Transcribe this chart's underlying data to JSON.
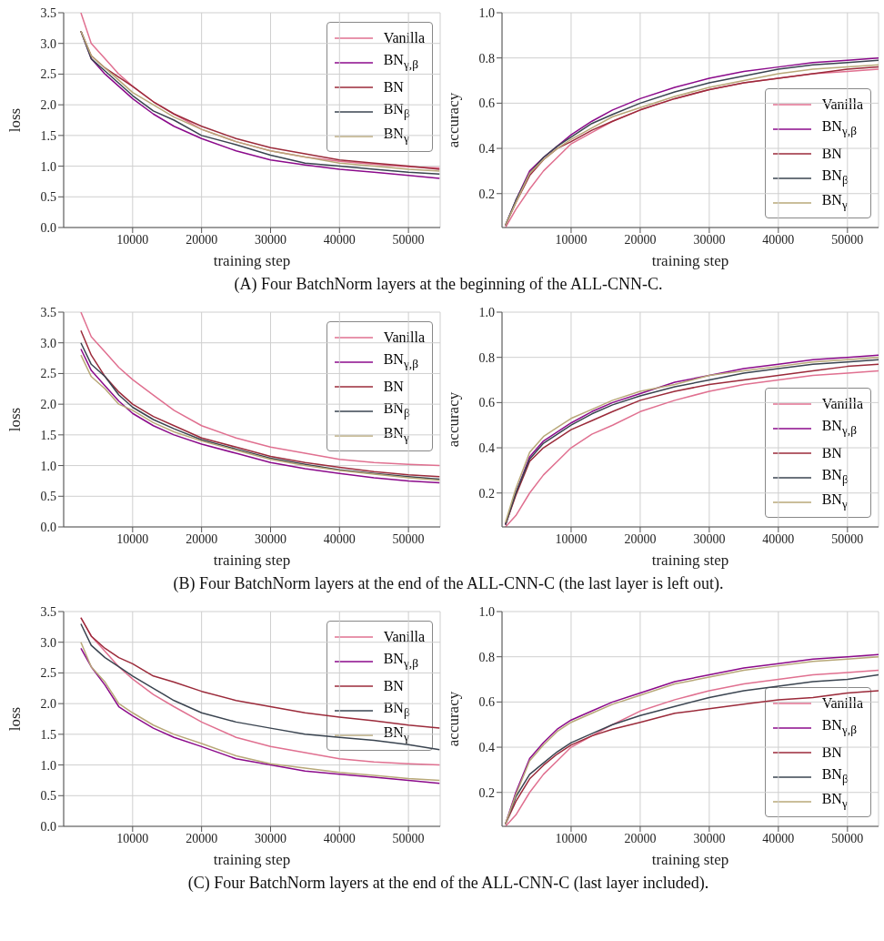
{
  "chart_data": [
    {
      "type": "line",
      "ylabel": "loss",
      "xlabel": "training step",
      "xlim": [
        0,
        54600
      ],
      "xticks": [
        10000,
        20000,
        30000,
        40000,
        50000
      ],
      "ylim": [
        0,
        3.5
      ],
      "yticks": [
        {
          "value": 0,
          "label": "0.0"
        },
        {
          "value": 0.5,
          "label": "0.5"
        },
        {
          "value": 1,
          "label": "1.0"
        },
        {
          "value": 1.5,
          "label": "1.5"
        },
        {
          "value": 2,
          "label": "2.0"
        },
        {
          "value": 2.5,
          "label": "2.5"
        },
        {
          "value": 3,
          "label": "3.0"
        },
        {
          "value": 3.5,
          "label": "3.5"
        }
      ],
      "grid": true,
      "legend": "top right",
      "line_style": "solid",
      "marker": "none",
      "annotations": [
        "(A) Four BatchNorm layers at the beginning of the ALL-CNN-C."
      ],
      "x": [
        2500,
        4000,
        6000,
        8000,
        10000,
        13000,
        16000,
        20000,
        25000,
        30000,
        35000,
        40000,
        45000,
        50000,
        54500
      ],
      "series": [
        {
          "name": "Vanilla",
          "color": "#e07090",
          "values": [
            3.5,
            3.0,
            2.75,
            2.5,
            2.3,
            2.05,
            1.85,
            1.6,
            1.4,
            1.25,
            1.15,
            1.08,
            1.03,
            0.99,
            0.97
          ]
        },
        {
          "name": "BN$_{γ,β}$",
          "color": "#8b0a8b",
          "values": [
            3.2,
            2.75,
            2.5,
            2.3,
            2.1,
            1.85,
            1.65,
            1.45,
            1.25,
            1.1,
            1.02,
            0.95,
            0.9,
            0.85,
            0.8
          ]
        },
        {
          "name": "BN",
          "color": "#9b2a3a",
          "values": [
            3.2,
            2.8,
            2.6,
            2.45,
            2.3,
            2.05,
            1.85,
            1.65,
            1.45,
            1.3,
            1.2,
            1.1,
            1.05,
            1.0,
            0.95
          ]
        },
        {
          "name": "BN$_{β}$",
          "color": "#3a4450",
          "values": [
            3.2,
            2.75,
            2.55,
            2.35,
            2.15,
            1.9,
            1.75,
            1.5,
            1.35,
            1.18,
            1.05,
            1.0,
            0.95,
            0.9,
            0.87
          ]
        },
        {
          "name": "BN$_{γ}$",
          "color": "#b8a878",
          "values": [
            3.2,
            2.8,
            2.6,
            2.4,
            2.2,
            2.0,
            1.8,
            1.6,
            1.4,
            1.25,
            1.15,
            1.05,
            1.0,
            0.95,
            0.92
          ]
        }
      ]
    },
    {
      "type": "line",
      "ylabel": "accuracy",
      "xlabel": "training step",
      "xlim": [
        0,
        54500
      ],
      "xticks": [
        10000,
        20000,
        30000,
        40000,
        50000
      ],
      "ylim": [
        0.05,
        1.0
      ],
      "yticks": [
        0.2,
        0.4,
        0.6,
        0.8,
        {
          "value": 1,
          "label": "1.0"
        }
      ],
      "grid": true,
      "legend": "bottom right",
      "line_style": "solid",
      "marker": "none",
      "x": [
        500,
        2000,
        4000,
        6000,
        8000,
        10000,
        13000,
        16000,
        20000,
        25000,
        30000,
        35000,
        40000,
        45000,
        50000,
        54500
      ],
      "series": [
        {
          "name": "Vanilla",
          "color": "#e07090",
          "values": [
            0.05,
            0.13,
            0.22,
            0.3,
            0.36,
            0.42,
            0.47,
            0.52,
            0.57,
            0.62,
            0.66,
            0.69,
            0.71,
            0.73,
            0.74,
            0.75
          ]
        },
        {
          "name": "BN$_{γ,β}$",
          "color": "#8b0a8b",
          "values": [
            0.06,
            0.17,
            0.3,
            0.36,
            0.41,
            0.46,
            0.52,
            0.57,
            0.62,
            0.67,
            0.71,
            0.74,
            0.76,
            0.78,
            0.79,
            0.8
          ]
        },
        {
          "name": "BN",
          "color": "#9b2a3a",
          "values": [
            0.06,
            0.16,
            0.28,
            0.35,
            0.4,
            0.43,
            0.48,
            0.52,
            0.57,
            0.62,
            0.66,
            0.69,
            0.71,
            0.73,
            0.75,
            0.76
          ]
        },
        {
          "name": "BN$_{β}$",
          "color": "#3a4450",
          "values": [
            0.06,
            0.17,
            0.29,
            0.36,
            0.41,
            0.45,
            0.51,
            0.55,
            0.6,
            0.65,
            0.69,
            0.72,
            0.75,
            0.77,
            0.78,
            0.79
          ]
        },
        {
          "name": "BN$_{γ}$",
          "color": "#b8a878",
          "values": [
            0.06,
            0.16,
            0.29,
            0.35,
            0.4,
            0.44,
            0.49,
            0.54,
            0.58,
            0.63,
            0.67,
            0.7,
            0.73,
            0.75,
            0.76,
            0.77
          ]
        }
      ]
    },
    {
      "type": "line",
      "ylabel": "loss",
      "xlabel": "training step",
      "xlim": [
        0,
        54600
      ],
      "xticks": [
        10000,
        20000,
        30000,
        40000,
        50000
      ],
      "ylim": [
        0,
        3.5
      ],
      "yticks": [
        {
          "value": 0,
          "label": "0.0"
        },
        {
          "value": 0.5,
          "label": "0.5"
        },
        {
          "value": 1,
          "label": "1.0"
        },
        {
          "value": 1.5,
          "label": "1.5"
        },
        {
          "value": 2,
          "label": "2.0"
        },
        {
          "value": 2.5,
          "label": "2.5"
        },
        {
          "value": 3,
          "label": "3.0"
        },
        {
          "value": 3.5,
          "label": "3.5"
        }
      ],
      "grid": true,
      "legend": "top right",
      "line_style": "solid",
      "marker": "none",
      "annotations": [
        "(B) Four BatchNorm layers at the end of the ALL-CNN-C (the last layer is left out)."
      ],
      "x": [
        2500,
        4000,
        6000,
        8000,
        10000,
        13000,
        16000,
        20000,
        25000,
        30000,
        35000,
        40000,
        45000,
        50000,
        54500
      ],
      "series": [
        {
          "name": "Vanilla",
          "color": "#e07090",
          "values": [
            3.5,
            3.1,
            2.85,
            2.6,
            2.4,
            2.15,
            1.9,
            1.65,
            1.45,
            1.3,
            1.2,
            1.1,
            1.05,
            1.02,
            1.0
          ]
        },
        {
          "name": "BN$_{γ,β}$",
          "color": "#8b0a8b",
          "values": [
            2.9,
            2.55,
            2.3,
            2.05,
            1.85,
            1.65,
            1.5,
            1.35,
            1.2,
            1.05,
            0.95,
            0.87,
            0.8,
            0.75,
            0.72
          ]
        },
        {
          "name": "BN",
          "color": "#9b2a3a",
          "values": [
            3.2,
            2.8,
            2.45,
            2.2,
            2.0,
            1.8,
            1.65,
            1.45,
            1.3,
            1.15,
            1.05,
            0.97,
            0.9,
            0.85,
            0.82
          ]
        },
        {
          "name": "BN$_{β}$",
          "color": "#3a4450",
          "values": [
            3.0,
            2.65,
            2.45,
            2.15,
            1.95,
            1.75,
            1.6,
            1.42,
            1.27,
            1.12,
            1.02,
            0.93,
            0.87,
            0.82,
            0.78
          ]
        },
        {
          "name": "BN$_{γ}$",
          "color": "#b8a878",
          "values": [
            2.8,
            2.45,
            2.25,
            2.0,
            1.9,
            1.7,
            1.55,
            1.4,
            1.25,
            1.1,
            1.0,
            0.92,
            0.86,
            0.8,
            0.76
          ]
        }
      ]
    },
    {
      "type": "line",
      "ylabel": "accuracy",
      "xlabel": "training step",
      "xlim": [
        0,
        54500
      ],
      "xticks": [
        10000,
        20000,
        30000,
        40000,
        50000
      ],
      "ylim": [
        0.05,
        1.0
      ],
      "yticks": [
        0.2,
        0.4,
        0.6,
        0.8,
        {
          "value": 1,
          "label": "1.0"
        }
      ],
      "grid": true,
      "legend": "bottom right",
      "line_style": "solid",
      "marker": "none",
      "x": [
        500,
        2000,
        4000,
        6000,
        8000,
        10000,
        13000,
        16000,
        20000,
        25000,
        30000,
        35000,
        40000,
        45000,
        50000,
        54500
      ],
      "series": [
        {
          "name": "Vanilla",
          "color": "#e07090",
          "values": [
            0.05,
            0.1,
            0.2,
            0.28,
            0.34,
            0.4,
            0.46,
            0.5,
            0.56,
            0.61,
            0.65,
            0.68,
            0.7,
            0.72,
            0.73,
            0.74
          ]
        },
        {
          "name": "BN$_{γ,β}$",
          "color": "#8b0a8b",
          "values": [
            0.06,
            0.2,
            0.36,
            0.43,
            0.47,
            0.51,
            0.56,
            0.6,
            0.64,
            0.69,
            0.72,
            0.75,
            0.77,
            0.79,
            0.8,
            0.81
          ]
        },
        {
          "name": "BN",
          "color": "#9b2a3a",
          "values": [
            0.06,
            0.19,
            0.34,
            0.4,
            0.44,
            0.48,
            0.52,
            0.56,
            0.61,
            0.65,
            0.68,
            0.7,
            0.72,
            0.74,
            0.76,
            0.77
          ]
        },
        {
          "name": "BN$_{β}$",
          "color": "#3a4450",
          "values": [
            0.06,
            0.2,
            0.35,
            0.42,
            0.46,
            0.5,
            0.55,
            0.59,
            0.63,
            0.67,
            0.7,
            0.73,
            0.75,
            0.77,
            0.78,
            0.79
          ]
        },
        {
          "name": "BN$_{γ}$",
          "color": "#b8a878",
          "values": [
            0.07,
            0.22,
            0.38,
            0.45,
            0.49,
            0.53,
            0.57,
            0.61,
            0.65,
            0.68,
            0.72,
            0.74,
            0.76,
            0.78,
            0.79,
            0.8
          ]
        }
      ]
    },
    {
      "type": "line",
      "ylabel": "loss",
      "xlabel": "training step",
      "xlim": [
        0,
        54600
      ],
      "xticks": [
        10000,
        20000,
        30000,
        40000,
        50000
      ],
      "ylim": [
        0,
        3.5
      ],
      "yticks": [
        {
          "value": 0,
          "label": "0.0"
        },
        {
          "value": 0.5,
          "label": "0.5"
        },
        {
          "value": 1,
          "label": "1.0"
        },
        {
          "value": 1.5,
          "label": "1.5"
        },
        {
          "value": 2,
          "label": "2.0"
        },
        {
          "value": 2.5,
          "label": "2.5"
        },
        {
          "value": 3,
          "label": "3.0"
        },
        {
          "value": 3.5,
          "label": "3.5"
        }
      ],
      "grid": true,
      "legend": "top right",
      "line_style": "solid",
      "marker": "none",
      "annotations": [
        "(C) Four BatchNorm layers at the end of the ALL-CNN-C (last layer included)."
      ],
      "x": [
        2500,
        4000,
        6000,
        8000,
        10000,
        13000,
        16000,
        20000,
        25000,
        30000,
        35000,
        40000,
        45000,
        50000,
        54500
      ],
      "series": [
        {
          "name": "Vanilla",
          "color": "#e07090",
          "values": [
            3.4,
            3.1,
            2.85,
            2.6,
            2.4,
            2.15,
            1.95,
            1.7,
            1.45,
            1.3,
            1.2,
            1.1,
            1.05,
            1.02,
            1.0
          ]
        },
        {
          "name": "BN$_{γ,β}$",
          "color": "#8b0a8b",
          "values": [
            2.9,
            2.6,
            2.3,
            1.95,
            1.8,
            1.6,
            1.45,
            1.3,
            1.1,
            1.0,
            0.9,
            0.85,
            0.8,
            0.75,
            0.7
          ]
        },
        {
          "name": "BN",
          "color": "#9b2a3a",
          "values": [
            3.4,
            3.1,
            2.9,
            2.75,
            2.65,
            2.45,
            2.35,
            2.2,
            2.05,
            1.95,
            1.85,
            1.78,
            1.72,
            1.65,
            1.6
          ]
        },
        {
          "name": "BN$_{β}$",
          "color": "#3a4450",
          "values": [
            3.3,
            2.95,
            2.75,
            2.6,
            2.45,
            2.25,
            2.05,
            1.85,
            1.7,
            1.6,
            1.5,
            1.45,
            1.4,
            1.33,
            1.25
          ]
        },
        {
          "name": "BN$_{γ}$",
          "color": "#b8a878",
          "values": [
            3.0,
            2.6,
            2.35,
            2.0,
            1.85,
            1.65,
            1.5,
            1.35,
            1.15,
            1.02,
            0.95,
            0.88,
            0.83,
            0.78,
            0.75
          ]
        }
      ]
    },
    {
      "type": "line",
      "ylabel": "accuracy",
      "xlabel": "training step",
      "xlim": [
        0,
        54500
      ],
      "xticks": [
        10000,
        20000,
        30000,
        40000,
        50000
      ],
      "ylim": [
        0.05,
        1.0
      ],
      "yticks": [
        0.2,
        0.4,
        0.6,
        0.8,
        {
          "value": 1,
          "label": "1.0"
        }
      ],
      "grid": true,
      "legend": "bottom right",
      "line_style": "solid",
      "marker": "none",
      "x": [
        500,
        2000,
        4000,
        6000,
        8000,
        10000,
        13000,
        16000,
        20000,
        25000,
        30000,
        35000,
        40000,
        45000,
        50000,
        54500
      ],
      "series": [
        {
          "name": "Vanilla",
          "color": "#e07090",
          "values": [
            0.05,
            0.1,
            0.2,
            0.28,
            0.34,
            0.4,
            0.45,
            0.5,
            0.56,
            0.61,
            0.65,
            0.68,
            0.7,
            0.72,
            0.73,
            0.74
          ]
        },
        {
          "name": "BN$_{γ,β}$",
          "color": "#8b0a8b",
          "values": [
            0.06,
            0.2,
            0.35,
            0.42,
            0.48,
            0.52,
            0.56,
            0.6,
            0.64,
            0.69,
            0.72,
            0.75,
            0.77,
            0.79,
            0.8,
            0.81
          ]
        },
        {
          "name": "BN",
          "color": "#9b2a3a",
          "values": [
            0.06,
            0.16,
            0.26,
            0.32,
            0.37,
            0.41,
            0.45,
            0.48,
            0.51,
            0.55,
            0.57,
            0.59,
            0.61,
            0.62,
            0.64,
            0.65
          ]
        },
        {
          "name": "BN$_{β}$",
          "color": "#3a4450",
          "values": [
            0.06,
            0.18,
            0.28,
            0.33,
            0.38,
            0.42,
            0.46,
            0.5,
            0.54,
            0.58,
            0.62,
            0.65,
            0.67,
            0.69,
            0.7,
            0.72
          ]
        },
        {
          "name": "BN$_{γ}$",
          "color": "#b8a878",
          "values": [
            0.06,
            0.19,
            0.34,
            0.41,
            0.47,
            0.51,
            0.55,
            0.59,
            0.63,
            0.68,
            0.71,
            0.74,
            0.76,
            0.78,
            0.79,
            0.8
          ]
        }
      ]
    }
  ]
}
